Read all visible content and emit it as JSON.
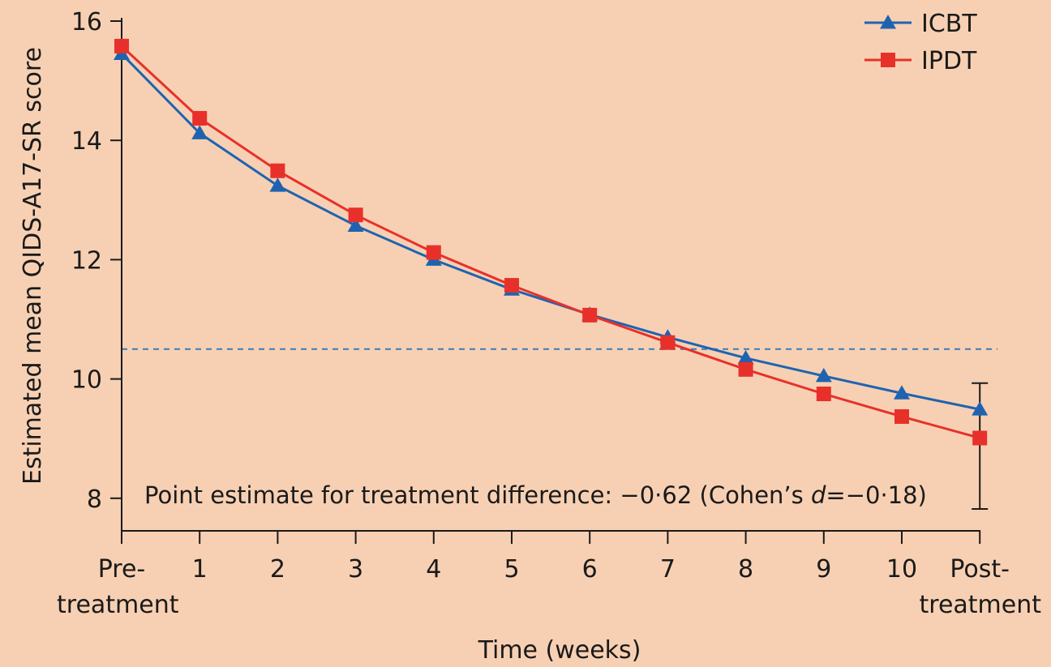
{
  "chart_data": {
    "type": "line",
    "xlabel": "Time (weeks)",
    "ylabel": "Estimated mean QIDS-A17-SR score",
    "ylim": [
      7.5,
      16
    ],
    "yticks": [
      8,
      10,
      12,
      14,
      16
    ],
    "categories": [
      [
        "Pre-",
        "treatment"
      ],
      [
        "1"
      ],
      [
        "2"
      ],
      [
        "3"
      ],
      [
        "4"
      ],
      [
        "5"
      ],
      [
        "6"
      ],
      [
        "7"
      ],
      [
        "8"
      ],
      [
        "9"
      ],
      [
        "10"
      ],
      [
        "Post-",
        "treatment"
      ]
    ],
    "reference_line": {
      "y": 10.5,
      "style": "dashed",
      "color": "#3b7bb8"
    },
    "legend": {
      "placement": "top-right"
    },
    "series": [
      {
        "name": "ICBT",
        "color": "#1f63b0",
        "marker": "triangle",
        "values": [
          15.45,
          14.12,
          13.24,
          12.57,
          12.0,
          11.5,
          11.08,
          10.7,
          10.35,
          10.05,
          9.76,
          9.49
        ]
      },
      {
        "name": "IPDT",
        "color": "#e8302b",
        "marker": "square",
        "values": [
          15.58,
          14.37,
          13.49,
          12.75,
          12.12,
          11.57,
          11.07,
          10.61,
          10.16,
          9.75,
          9.37,
          9.01
        ]
      }
    ],
    "error_bar": {
      "category_index": 11,
      "low": 7.82,
      "high": 9.93
    },
    "annotation": {
      "prefix": "Point estimate for treatment difference: −0·62 (Cohen’s ",
      "italic": "d",
      "suffix": "=−0·18)"
    }
  }
}
